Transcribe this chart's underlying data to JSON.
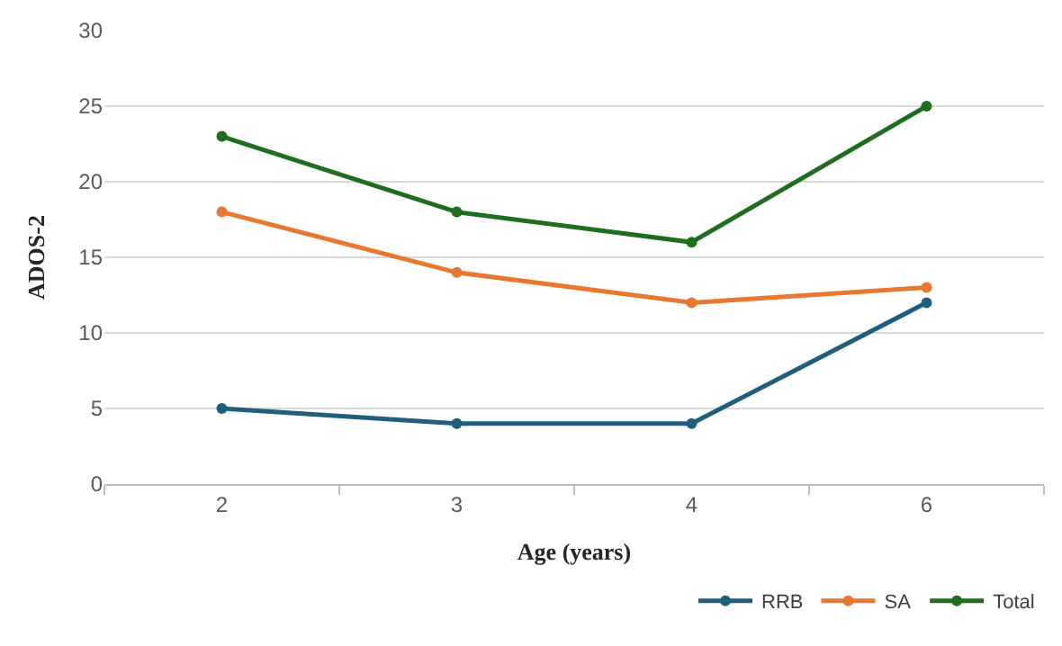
{
  "chart_data": {
    "type": "line",
    "xlabel": "Age (years)",
    "ylabel": "ADOS-2",
    "categories": [
      "2",
      "3",
      "4",
      "6"
    ],
    "series": [
      {
        "name": "RRB",
        "color": "#1f5f7d",
        "values": [
          5,
          4,
          4,
          12
        ]
      },
      {
        "name": "SA",
        "color": "#e8782f",
        "values": [
          18,
          14,
          12,
          13
        ]
      },
      {
        "name": "Total",
        "color": "#1e6e1e",
        "values": [
          23,
          18,
          16,
          25
        ]
      }
    ],
    "ylim": [
      0,
      30
    ],
    "yticks": [
      0,
      5,
      10,
      15,
      20,
      25,
      30
    ],
    "grid": "y",
    "legend": "bottom right",
    "marker": "circle",
    "line_style": "solid"
  }
}
